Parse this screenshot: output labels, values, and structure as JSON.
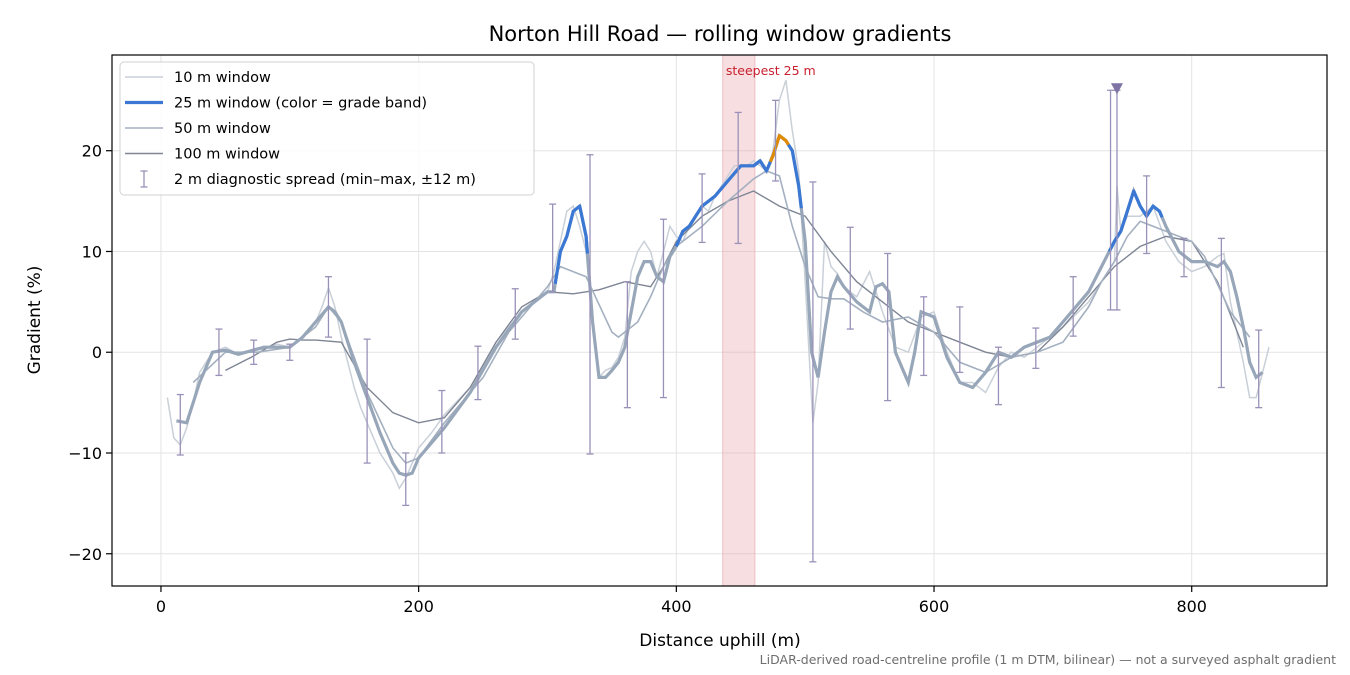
{
  "chart_data": {
    "type": "line",
    "title": "Norton Hill Road — rolling window gradients",
    "xlabel": "Distance uphill (m)",
    "ylabel": "Gradient (%)",
    "xlim": [
      -38,
      905
    ],
    "ylim": [
      -23.2,
      29.5
    ],
    "xticks": [
      0,
      200,
      400,
      600,
      800
    ],
    "xtick_labels": [
      "0",
      "200",
      "400",
      "600",
      "800"
    ],
    "yticks": [
      -20,
      -10,
      0,
      10,
      20
    ],
    "ytick_labels": [
      "−20",
      "−10",
      "0",
      "10",
      "20"
    ],
    "grid": true,
    "legend_position": "top-left",
    "footnote": "LiDAR-derived road-centreline profile (1 m DTM, bilinear) — not a surveyed asphalt gradient",
    "highlight": {
      "x_start": 436,
      "x_end": 461,
      "label": "steepest 25 m",
      "color": "#e8a0a8"
    },
    "marker": {
      "x": 742,
      "y": 26.2,
      "color": "#7f72a4"
    },
    "colors": {
      "w10": "#c9d0d8",
      "w25_base": "#97a6b8",
      "w25_blue": "#3a78d4",
      "w25_orange": "#e08a00",
      "w50": "#a4b0c0",
      "w100": "#7e8594",
      "errorbar": "#9a91b8"
    },
    "series": [
      {
        "name": "10 m window",
        "x": [
          5,
          10,
          15,
          20,
          25,
          30,
          40,
          50,
          60,
          70,
          80,
          90,
          100,
          110,
          120,
          125,
          130,
          135,
          140,
          145,
          150,
          155,
          160,
          170,
          180,
          185,
          190,
          195,
          200,
          210,
          220,
          240,
          260,
          280,
          300,
          305,
          310,
          315,
          320,
          325,
          330,
          335,
          340,
          345,
          350,
          355,
          360,
          365,
          370,
          375,
          380,
          385,
          390,
          395,
          400,
          405,
          410,
          415,
          420,
          425,
          430,
          435,
          440,
          445,
          450,
          455,
          460,
          465,
          470,
          475,
          480,
          485,
          490,
          495,
          500,
          503,
          506,
          510,
          515,
          520,
          525,
          530,
          540,
          550,
          560,
          570,
          580,
          590,
          600,
          610,
          620,
          630,
          640,
          650,
          660,
          670,
          680,
          700,
          720,
          730,
          740,
          742,
          745,
          750,
          760,
          770,
          780,
          790,
          800,
          810,
          820,
          825,
          830,
          840,
          845,
          850,
          855,
          860
        ],
        "y": [
          -4.5,
          -8.5,
          -9.2,
          -7.5,
          -5,
          -2,
          0,
          0.5,
          -0.2,
          0.2,
          0.3,
          0.8,
          0.5,
          1.5,
          3,
          4.5,
          6.4,
          4.5,
          1.5,
          -1,
          -3.5,
          -5.5,
          -7,
          -10,
          -12,
          -13.5,
          -12.5,
          -11,
          -9.5,
          -8,
          -6.2,
          -3.5,
          1,
          4,
          6,
          8,
          11,
          14,
          14.5,
          12.5,
          10,
          3,
          -2.5,
          -1.8,
          -1.5,
          -0.5,
          1.5,
          8,
          10,
          11,
          10,
          7.5,
          10,
          12.5,
          11.5,
          11,
          12.5,
          13.5,
          14.5,
          14,
          15.5,
          16.5,
          17.5,
          18.5,
          18.5,
          18.5,
          19,
          18.5,
          18,
          20,
          25,
          27,
          22,
          18,
          7,
          0,
          -7,
          -3,
          11,
          8.5,
          7.8,
          6.5,
          5.5,
          8,
          4,
          0.5,
          0,
          3.5,
          4,
          0,
          -3,
          -3,
          -4,
          -1.5,
          0,
          -0.5,
          0.5,
          2.5,
          5,
          7,
          9,
          16.5,
          12,
          13.5,
          13.5,
          14.5,
          11,
          9,
          8,
          8.5,
          9.5,
          9.8,
          5,
          -1,
          -4.5,
          -4.5,
          -2,
          0.5
        ]
      },
      {
        "name": "25 m window (color = grade band)",
        "x": [
          12,
          20,
          25,
          30,
          40,
          50,
          60,
          80,
          100,
          110,
          120,
          130,
          135,
          140,
          150,
          160,
          170,
          180,
          185,
          190,
          195,
          200,
          220,
          240,
          260,
          280,
          300,
          305,
          310,
          315,
          320,
          325,
          330,
          335,
          340,
          345,
          350,
          355,
          360,
          365,
          370,
          375,
          380,
          385,
          390,
          395,
          400,
          405,
          410,
          420,
          430,
          440,
          450,
          455,
          460,
          465,
          470,
          475,
          480,
          485,
          490,
          495,
          500,
          505,
          510,
          515,
          520,
          525,
          530,
          540,
          550,
          555,
          560,
          565,
          570,
          580,
          585,
          590,
          600,
          610,
          620,
          630,
          640,
          650,
          660,
          670,
          690,
          700,
          720,
          730,
          740,
          745,
          750,
          755,
          760,
          765,
          770,
          775,
          780,
          790,
          800,
          810,
          820,
          825,
          830,
          835,
          840,
          845,
          850,
          855
        ],
        "y": [
          -6.8,
          -7,
          -5,
          -3,
          0,
          0.2,
          -0.2,
          0.5,
          0.5,
          1.5,
          3,
          4.5,
          4,
          3,
          -1,
          -4.5,
          -8,
          -11,
          -12,
          -12.2,
          -12,
          -10.5,
          -7.5,
          -4,
          0.5,
          4,
          6,
          6,
          10,
          11.5,
          14,
          14.5,
          11.5,
          3,
          -2.5,
          -2.5,
          -1.8,
          -1,
          0.5,
          4,
          7.5,
          9,
          9,
          7.5,
          7,
          9.5,
          10.5,
          12,
          12.5,
          14.5,
          15.5,
          17,
          18.5,
          18.5,
          18.5,
          19,
          18,
          19.5,
          21.5,
          21,
          20,
          16.5,
          11,
          0,
          -2.5,
          2,
          6,
          7.5,
          6.5,
          5,
          4,
          6.5,
          6.8,
          6,
          0,
          -3,
          0,
          4,
          3.5,
          -0.5,
          -3,
          -3.5,
          -2,
          0,
          -0.5,
          0.5,
          1.5,
          3,
          6,
          8.5,
          11,
          12,
          14,
          16,
          14.5,
          13.5,
          14.5,
          14,
          12.5,
          10,
          9,
          9,
          8.5,
          9,
          8,
          5.5,
          2.5,
          -1,
          -2.5,
          -2
        ],
        "band_segments": [
          {
            "from": 306,
            "to": 331,
            "color": "blue"
          },
          {
            "from": 400,
            "to": 473,
            "color": "blue"
          },
          {
            "from": 473,
            "to": 487,
            "color": "orange"
          },
          {
            "from": 487,
            "to": 497,
            "color": "blue"
          },
          {
            "from": 736,
            "to": 777,
            "color": "blue"
          }
        ]
      },
      {
        "name": "50 m window",
        "x": [
          25,
          50,
          75,
          100,
          120,
          130,
          140,
          160,
          180,
          190,
          200,
          220,
          250,
          270,
          290,
          300,
          310,
          330,
          350,
          355,
          370,
          380,
          390,
          400,
          420,
          440,
          460,
          470,
          480,
          490,
          500,
          510,
          520,
          530,
          545,
          560,
          580,
          600,
          620,
          640,
          660,
          680,
          700,
          720,
          730,
          740,
          750,
          760,
          780,
          800,
          810,
          830,
          845
        ],
        "y": [
          -3,
          0,
          0,
          0.5,
          2.5,
          4.5,
          3,
          -4,
          -9.5,
          -11,
          -10.5,
          -7,
          -2.5,
          2,
          5,
          6.5,
          8.5,
          7.5,
          2,
          1.5,
          3,
          5.5,
          8.5,
          10.5,
          12.5,
          15,
          17.2,
          18,
          17.5,
          12.5,
          8.5,
          5.5,
          5.3,
          5.3,
          4,
          3,
          3.5,
          2,
          -1,
          -2,
          -0.5,
          0,
          1,
          4.5,
          7,
          9,
          11.5,
          13,
          12,
          11,
          9.5,
          4,
          1.5
        ]
      },
      {
        "name": "100 m window",
        "x": [
          50,
          70,
          90,
          100,
          110,
          120,
          140,
          160,
          180,
          200,
          220,
          240,
          260,
          280,
          300,
          320,
          340,
          360,
          380,
          390,
          400,
          420,
          440,
          460,
          480,
          500,
          520,
          540,
          560,
          580,
          600,
          620,
          640,
          660,
          680,
          700,
          720,
          740,
          760,
          780,
          800,
          820,
          840
        ],
        "y": [
          -1.8,
          -0.5,
          1,
          1.3,
          1.2,
          1.2,
          1,
          -3.5,
          -6,
          -7,
          -6.5,
          -3.5,
          1,
          4.5,
          6,
          5.8,
          6.2,
          7,
          6.5,
          8.5,
          11,
          13.5,
          15,
          16,
          14.5,
          13.5,
          10,
          7,
          5,
          3,
          2,
          1,
          0,
          -0.5,
          0,
          2.5,
          5.5,
          8.5,
          10.5,
          11.5,
          11,
          7,
          0.5
        ]
      }
    ],
    "errorbars": {
      "name": "2 m diagnostic spread (min–max, ±12 m)",
      "x": [
        15,
        45,
        72,
        100,
        130,
        160,
        190,
        218,
        246,
        275,
        304,
        333,
        362,
        390,
        420,
        448,
        477,
        506,
        535,
        564,
        592,
        620,
        650,
        679,
        708,
        737,
        742,
        765,
        794,
        823,
        852
      ],
      "low": [
        -10.2,
        -2.3,
        -1.2,
        -0.8,
        1.5,
        -11,
        -15.2,
        -10,
        -4.7,
        1.3,
        6,
        -10.1,
        -5.5,
        -4.5,
        10.9,
        10.8,
        17,
        -20.8,
        2.3,
        -4.8,
        -2.3,
        -2,
        -5.2,
        -1.6,
        1.6,
        4.2,
        4.2,
        9.8,
        7.5,
        -3.5,
        -5.5
      ],
      "high": [
        -4.2,
        2.3,
        1.2,
        0.8,
        7.5,
        1.3,
        -10,
        -3.8,
        0.6,
        6.3,
        14.7,
        19.6,
        7,
        13.2,
        17.7,
        23.8,
        25,
        16.9,
        12.4,
        9.8,
        5.5,
        4.5,
        0.5,
        2.4,
        7.5,
        26,
        26,
        17.5,
        11.3,
        11.3,
        2.2
      ]
    }
  }
}
